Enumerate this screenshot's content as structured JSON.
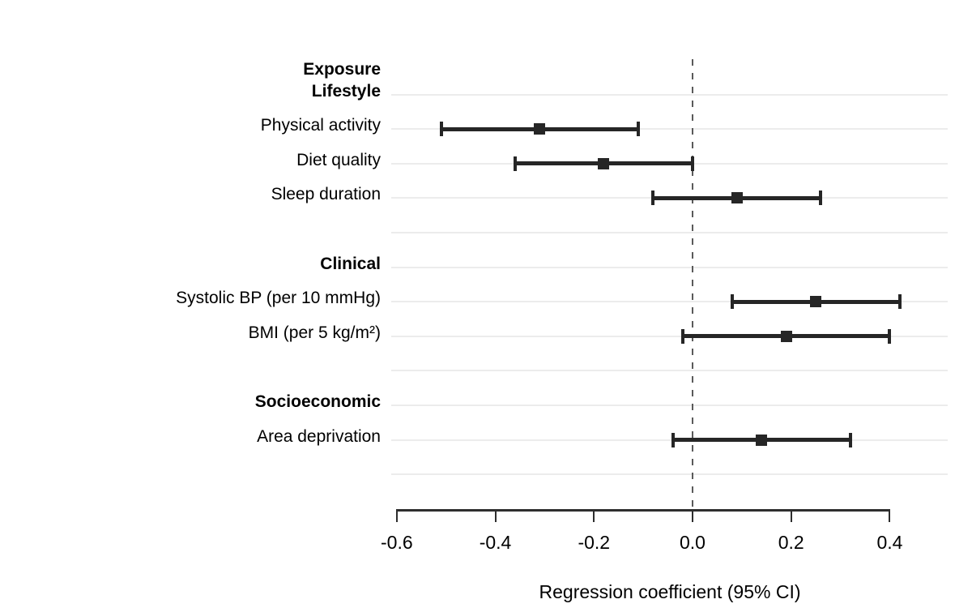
{
  "chart_data": {
    "type": "scatter",
    "subtype": "forest-plot",
    "title": "",
    "xlabel": "Regression coefficient (95% CI)",
    "header_label": "Exposure",
    "x_ticks": [
      {
        "label": "-0.6",
        "value": -0.6
      },
      {
        "label": "-0.4",
        "value": -0.4
      },
      {
        "label": "-0.2",
        "value": -0.2
      },
      {
        "label": "0.0",
        "value": 0.0
      },
      {
        "label": "0.2",
        "value": 0.2
      },
      {
        "label": "0.4",
        "value": 0.4
      }
    ],
    "x_axis_range": [
      -0.6,
      0.4
    ],
    "panel_x_range": [
      -0.61,
      0.52
    ],
    "zero_line_value": 0.0,
    "grid": true,
    "legend": false,
    "rows": [
      {
        "label": "Lifestyle",
        "bold": true,
        "estimate": null,
        "ci_low": null,
        "ci_high": null
      },
      {
        "label": "Physical activity",
        "bold": false,
        "estimate": -0.31,
        "ci_low": -0.51,
        "ci_high": -0.11
      },
      {
        "label": "Diet quality",
        "bold": false,
        "estimate": -0.18,
        "ci_low": -0.36,
        "ci_high": 0.0
      },
      {
        "label": "Sleep duration",
        "bold": false,
        "estimate": 0.09,
        "ci_low": -0.08,
        "ci_high": 0.26
      },
      {
        "label": "",
        "bold": false,
        "estimate": null,
        "ci_low": null,
        "ci_high": null
      },
      {
        "label": "Clinical",
        "bold": true,
        "estimate": null,
        "ci_low": null,
        "ci_high": null
      },
      {
        "label": "Systolic BP (per 10 mmHg)",
        "bold": false,
        "estimate": 0.25,
        "ci_low": 0.08,
        "ci_high": 0.42
      },
      {
        "label": "BMI (per 5 kg/m²)",
        "bold": false,
        "estimate": 0.19,
        "ci_low": -0.02,
        "ci_high": 0.4
      },
      {
        "label": "",
        "bold": false,
        "estimate": null,
        "ci_low": null,
        "ci_high": null
      },
      {
        "label": "Socioeconomic",
        "bold": true,
        "estimate": null,
        "ci_low": null,
        "ci_high": null
      },
      {
        "label": "Area deprivation",
        "bold": false,
        "estimate": 0.14,
        "ci_low": -0.04,
        "ci_high": 0.32
      },
      {
        "label": "",
        "bold": false,
        "estimate": null,
        "ci_low": null,
        "ci_high": null
      }
    ],
    "colors": {
      "ink": "#262626",
      "axis": "#2e2e2e",
      "gridline": "#ececec",
      "zero_line": "#5a5a5a",
      "text": "#000000",
      "background": "#ffffff"
    }
  }
}
